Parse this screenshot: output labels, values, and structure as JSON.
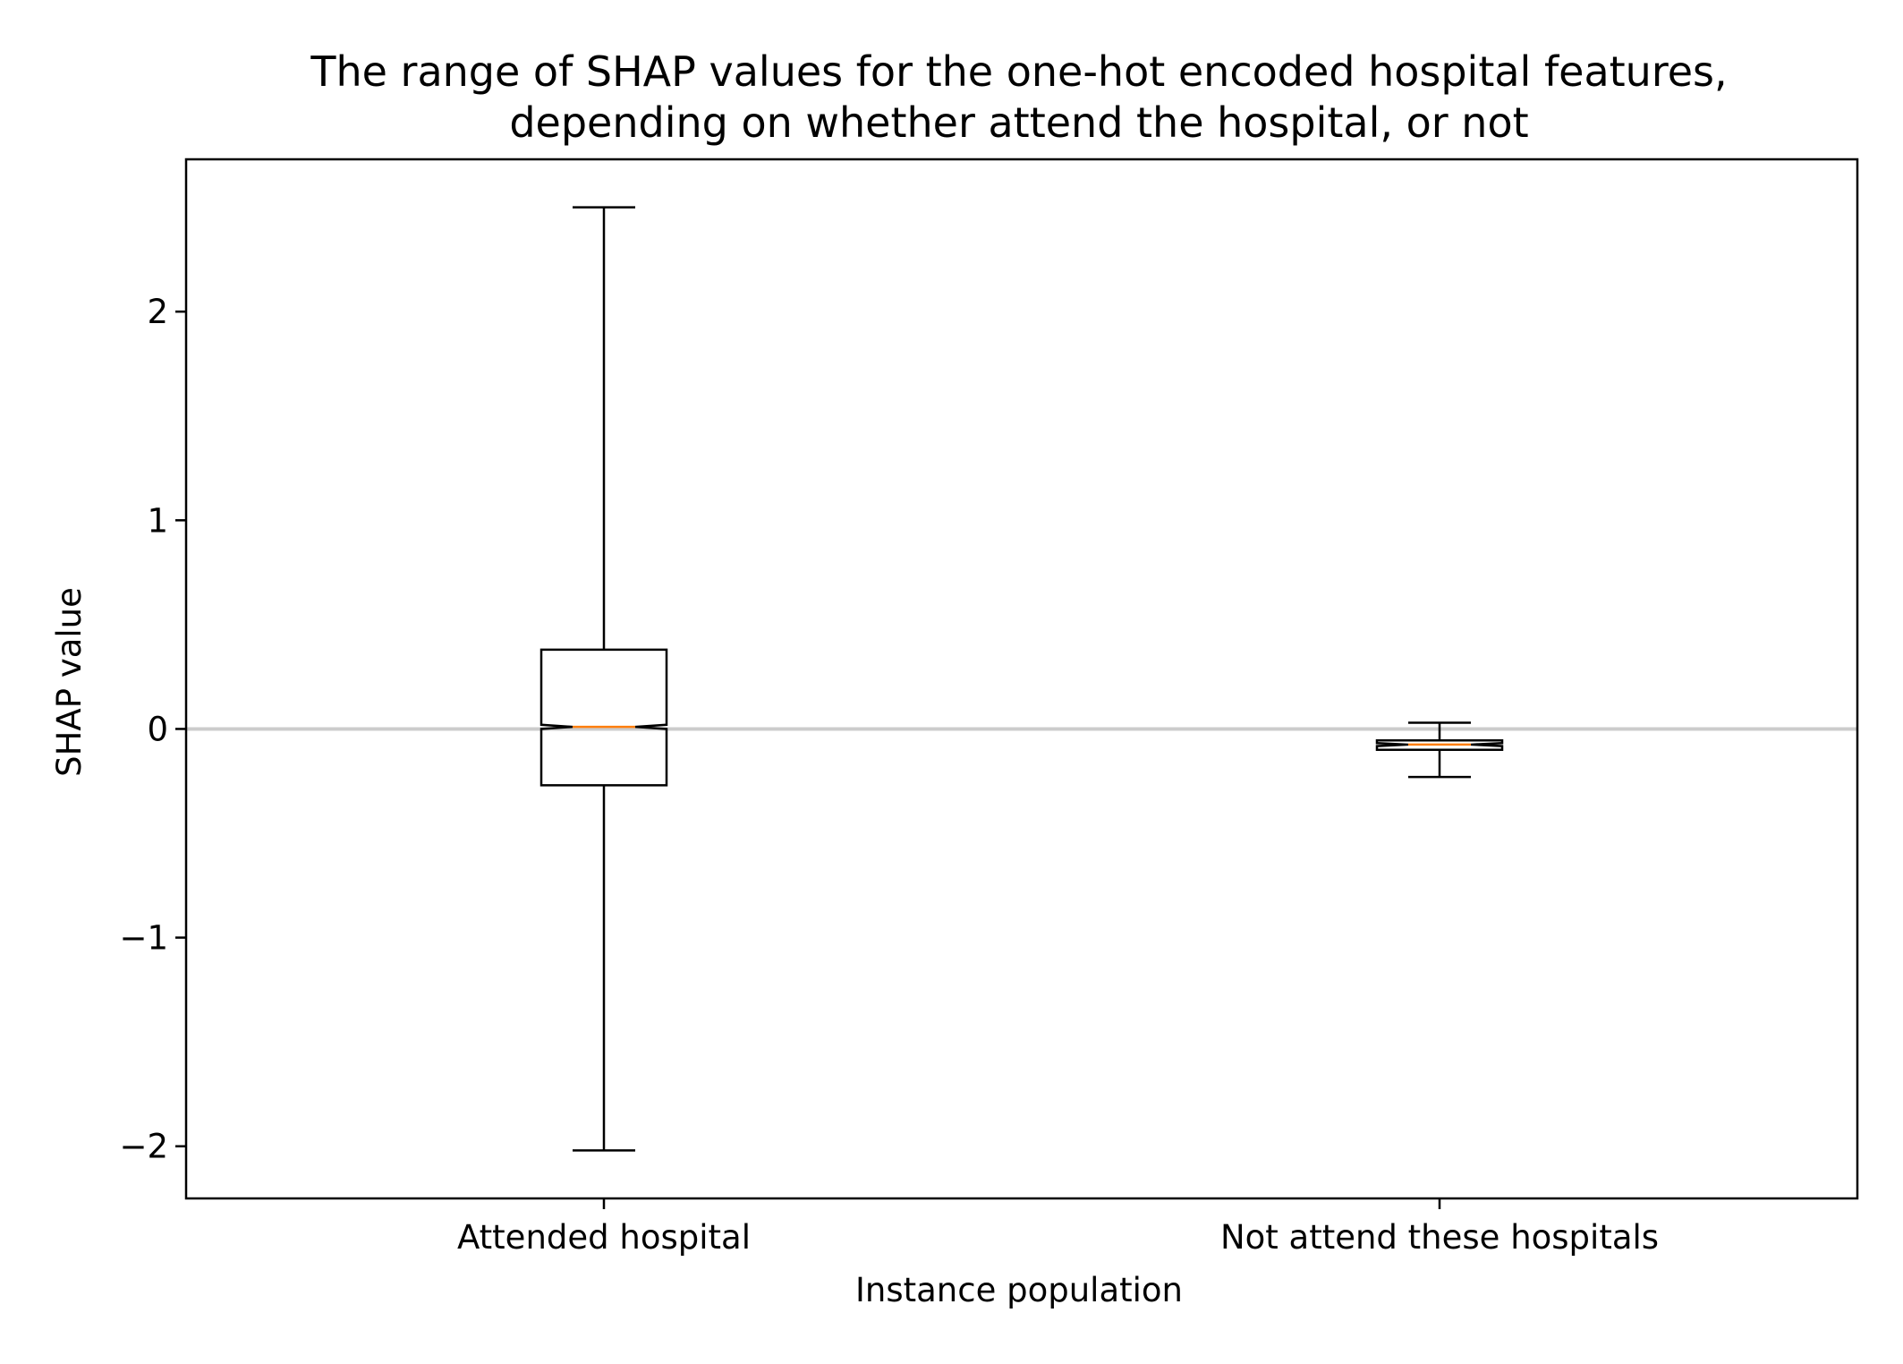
{
  "chart_data": {
    "type": "boxplot",
    "title_lines": [
      "The range of SHAP values for the one-hot encoded hospital features,",
      "depending on whether attend the hospital, or not"
    ],
    "xlabel": "Instance population",
    "ylabel": "SHAP value",
    "categories": [
      "Attended hospital",
      "Not attend these hospitals"
    ],
    "ylim": [
      -2.25,
      2.73
    ],
    "yticks": [
      -2,
      -1,
      0,
      1,
      2
    ],
    "ytick_labels": [
      "−2",
      "−1",
      "0",
      "1",
      "2"
    ],
    "notched": true,
    "reference_line": {
      "y": 0,
      "color": "#cccccc"
    },
    "boxes": [
      {
        "category": "Attended hospital",
        "whisker_low": -2.02,
        "q1": -0.27,
        "median": 0.01,
        "q3": 0.38,
        "whisker_high": 2.5,
        "notch_low": 0.0,
        "notch_high": 0.02
      },
      {
        "category": "Not attend these hospitals",
        "whisker_low": -0.23,
        "q1": -0.1,
        "median": -0.075,
        "q3": -0.055,
        "whisker_high": 0.03,
        "notch_low": -0.082,
        "notch_high": -0.068
      }
    ],
    "colors": {
      "box": "#000000",
      "median": "#ff7f0e",
      "reference": "#cccccc"
    },
    "grid": false,
    "legend": "none"
  }
}
